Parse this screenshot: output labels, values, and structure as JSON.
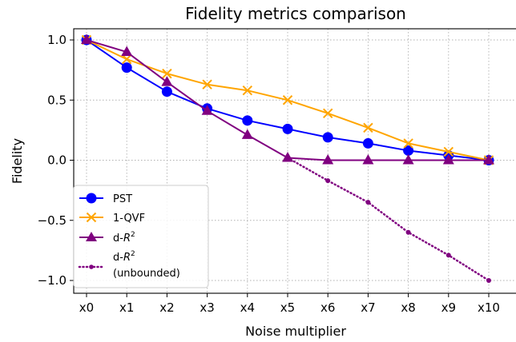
{
  "chart_data": {
    "type": "line",
    "title": "Fidelity metrics comparison",
    "xlabel": "Noise multiplier",
    "ylabel": "Fidelity",
    "categories": [
      "x0",
      "x1",
      "x2",
      "x3",
      "x4",
      "x5",
      "x6",
      "x7",
      "x8",
      "x9",
      "x10"
    ],
    "ylim": [
      -1.1,
      1.1
    ],
    "yticks": [
      -1.0,
      -0.5,
      0.0,
      0.5,
      1.0
    ],
    "ytick_labels": [
      "−1.0",
      "−0.5",
      "0.0",
      "0.5",
      "1.0"
    ],
    "grid": true,
    "legend_position": "lower-left",
    "series": [
      {
        "name": "PST",
        "color": "#0000ff",
        "marker": "circle",
        "line_style": "solid",
        "values": [
          1.0,
          0.77,
          0.57,
          0.43,
          0.33,
          0.26,
          0.19,
          0.14,
          0.08,
          0.04,
          0.0
        ]
      },
      {
        "name": "1-QVF",
        "color": "#ffa500",
        "marker": "x",
        "line_style": "solid",
        "values": [
          1.0,
          0.84,
          0.72,
          0.63,
          0.58,
          0.5,
          0.39,
          0.27,
          0.14,
          0.07,
          0.0
        ]
      },
      {
        "name": "d-R²",
        "color": "#800080",
        "marker": "triangle",
        "line_style": "solid",
        "values": [
          1.0,
          0.9,
          0.65,
          0.41,
          0.21,
          0.02,
          0.0,
          0.0,
          0.0,
          0.0,
          0.0
        ]
      },
      {
        "name": "d-R² (unbounded)",
        "color": "#800080",
        "marker": "small-dot",
        "line_style": "dotted",
        "start_index": 5,
        "values": [
          null,
          null,
          null,
          null,
          null,
          0.02,
          -0.17,
          -0.35,
          -0.6,
          -0.79,
          -1.0
        ]
      }
    ]
  }
}
